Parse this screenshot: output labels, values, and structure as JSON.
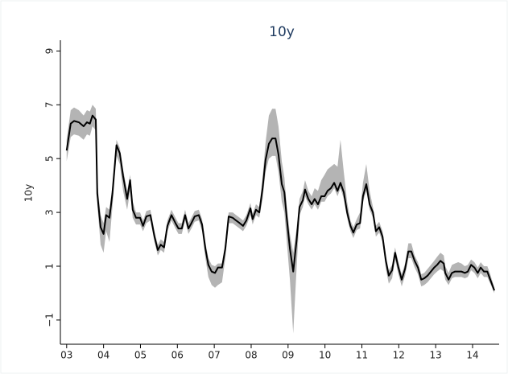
{
  "chart_data": {
    "type": "line-band",
    "title": "10y",
    "y_label": "10y",
    "color": "#000000",
    "band_color": "#b4b4b4",
    "x": [
      2003.0,
      2003.11,
      2003.2,
      2003.33,
      2003.46,
      2003.55,
      2003.63,
      2003.7,
      2003.79,
      2003.83,
      2003.92,
      2004.0,
      2004.07,
      2004.16,
      2004.24,
      2004.35,
      2004.44,
      2004.53,
      2004.64,
      2004.72,
      2004.79,
      2004.88,
      2004.99,
      2005.07,
      2005.16,
      2005.27,
      2005.38,
      2005.47,
      2005.55,
      2005.64,
      2005.73,
      2005.84,
      2005.95,
      2006.03,
      2006.12,
      2006.21,
      2006.3,
      2006.38,
      2006.47,
      2006.58,
      2006.67,
      2006.76,
      2006.84,
      2006.93,
      2007.02,
      2007.1,
      2007.21,
      2007.3,
      2007.39,
      2007.5,
      2007.59,
      2007.69,
      2007.78,
      2007.87,
      2007.98,
      2008.04,
      2008.13,
      2008.22,
      2008.31,
      2008.39,
      2008.48,
      2008.57,
      2008.66,
      2008.74,
      2008.83,
      2008.9,
      2008.96,
      2009.05,
      2009.14,
      2009.23,
      2009.31,
      2009.4,
      2009.46,
      2009.55,
      2009.64,
      2009.72,
      2009.81,
      2009.9,
      2009.99,
      2010.07,
      2010.16,
      2010.25,
      2010.34,
      2010.42,
      2010.51,
      2010.6,
      2010.69,
      2010.77,
      2010.86,
      2010.95,
      2011.03,
      2011.12,
      2011.21,
      2011.3,
      2011.38,
      2011.47,
      2011.56,
      2011.65,
      2011.73,
      2011.82,
      2011.9,
      2011.99,
      2012.08,
      2012.17,
      2012.26,
      2012.34,
      2012.43,
      2012.52,
      2012.61,
      2012.69,
      2012.78,
      2012.87,
      2012.96,
      2013.04,
      2013.13,
      2013.22,
      2013.26,
      2013.35,
      2013.44,
      2013.52,
      2013.61,
      2013.7,
      2013.79,
      2013.87,
      2013.96,
      2014.05,
      2014.14,
      2014.22,
      2014.31,
      2014.4,
      2014.48,
      2014.59
    ],
    "values": [
      5.3,
      6.3,
      6.4,
      6.35,
      6.2,
      6.35,
      6.3,
      6.6,
      6.45,
      3.7,
      2.45,
      2.2,
      2.9,
      2.8,
      3.7,
      5.5,
      5.2,
      4.35,
      3.5,
      4.2,
      3.1,
      2.8,
      2.8,
      2.5,
      2.85,
      2.9,
      2.1,
      1.6,
      1.8,
      1.7,
      2.5,
      2.9,
      2.6,
      2.4,
      2.4,
      2.9,
      2.4,
      2.6,
      2.85,
      2.9,
      2.55,
      1.65,
      1.05,
      0.8,
      0.75,
      0.95,
      0.95,
      1.65,
      2.85,
      2.8,
      2.7,
      2.6,
      2.5,
      2.7,
      3.15,
      2.75,
      3.1,
      3.0,
      3.9,
      4.95,
      5.55,
      5.75,
      5.75,
      5.15,
      4.05,
      3.75,
      2.85,
      1.65,
      0.8,
      1.95,
      3.2,
      3.45,
      3.85,
      3.5,
      3.3,
      3.5,
      3.3,
      3.6,
      3.6,
      3.8,
      3.9,
      4.1,
      3.8,
      4.1,
      3.75,
      3.0,
      2.5,
      2.25,
      2.55,
      2.6,
      3.6,
      4.05,
      3.3,
      3.0,
      2.3,
      2.45,
      2.1,
      1.2,
      0.65,
      0.85,
      1.5,
      0.95,
      0.5,
      0.9,
      1.55,
      1.55,
      1.2,
      0.95,
      0.5,
      0.55,
      0.65,
      0.8,
      0.95,
      1.05,
      1.2,
      1.1,
      0.75,
      0.5,
      0.75,
      0.8,
      0.8,
      0.8,
      0.75,
      0.8,
      1.05,
      0.95,
      0.75,
      0.95,
      0.8,
      0.8,
      0.5,
      0.1
    ],
    "lower": [
      4.9,
      5.8,
      5.9,
      5.85,
      5.7,
      5.9,
      5.85,
      6.2,
      6.05,
      3.3,
      1.8,
      1.5,
      2.3,
      1.9,
      3.2,
      5.1,
      4.8,
      3.8,
      3.1,
      3.8,
      2.8,
      2.55,
      2.55,
      2.3,
      2.6,
      2.7,
      1.9,
      1.4,
      1.6,
      1.5,
      2.3,
      2.7,
      2.4,
      2.2,
      2.2,
      2.7,
      2.2,
      2.4,
      2.65,
      2.7,
      2.3,
      1.3,
      0.6,
      0.3,
      0.2,
      0.3,
      0.4,
      1.3,
      2.6,
      2.6,
      2.5,
      2.4,
      2.3,
      2.5,
      2.9,
      2.55,
      2.9,
      2.8,
      3.5,
      4.5,
      5.0,
      5.1,
      5.1,
      4.5,
      3.4,
      3.0,
      2.0,
      0.5,
      -1.5,
      0.9,
      2.9,
      3.2,
      3.6,
      3.3,
      3.1,
      3.3,
      3.1,
      3.4,
      3.4,
      3.6,
      3.7,
      3.9,
      3.6,
      3.9,
      3.5,
      2.8,
      2.3,
      2.05,
      2.35,
      2.4,
      3.4,
      3.8,
      3.1,
      2.8,
      2.1,
      2.25,
      1.9,
      0.9,
      0.35,
      0.55,
      1.25,
      0.7,
      0.25,
      0.65,
      1.3,
      1.3,
      0.95,
      0.7,
      0.25,
      0.3,
      0.4,
      0.55,
      0.7,
      0.8,
      0.9,
      0.8,
      0.5,
      0.3,
      0.55,
      0.6,
      0.6,
      0.6,
      0.55,
      0.6,
      0.85,
      0.75,
      0.55,
      0.75,
      0.6,
      0.6,
      0.35,
      0.0
    ],
    "upper": [
      5.7,
      6.8,
      6.9,
      6.8,
      6.6,
      6.8,
      6.75,
      7.0,
      6.85,
      4.1,
      2.9,
      2.6,
      3.2,
      3.1,
      4.0,
      5.7,
      5.4,
      4.6,
      3.8,
      4.4,
      3.4,
      3.0,
      3.0,
      2.7,
      3.05,
      3.1,
      2.3,
      1.8,
      2.0,
      1.9,
      2.7,
      3.1,
      2.8,
      2.6,
      2.6,
      3.1,
      2.6,
      2.8,
      3.05,
      3.1,
      2.75,
      1.9,
      1.3,
      1.05,
      1.0,
      1.1,
      1.1,
      1.9,
      3.0,
      3.0,
      2.9,
      2.8,
      2.7,
      2.9,
      3.35,
      2.95,
      3.3,
      3.2,
      4.3,
      5.6,
      6.6,
      6.85,
      6.85,
      6.2,
      4.9,
      4.3,
      3.3,
      2.2,
      1.5,
      2.4,
      3.5,
      3.8,
      4.2,
      3.8,
      3.6,
      3.9,
      3.8,
      4.2,
      4.4,
      4.6,
      4.7,
      4.8,
      4.7,
      5.7,
      4.5,
      3.4,
      2.7,
      2.45,
      2.75,
      3.0,
      4.1,
      4.8,
      3.8,
      3.2,
      2.5,
      2.65,
      2.3,
      1.4,
      0.85,
      1.05,
      1.7,
      1.15,
      0.7,
      1.1,
      1.85,
      1.85,
      1.4,
      1.15,
      0.7,
      0.75,
      0.9,
      1.05,
      1.2,
      1.35,
      1.5,
      1.4,
      1.0,
      0.75,
      1.05,
      1.1,
      1.15,
      1.1,
      1.0,
      1.05,
      1.25,
      1.15,
      0.95,
      1.15,
      1.0,
      1.0,
      0.7,
      0.2
    ],
    "xlim": [
      2002.83,
      2014.72
    ],
    "xticks": [
      {
        "value": 2003,
        "label": "03"
      },
      {
        "value": 2004,
        "label": "04"
      },
      {
        "value": 2005,
        "label": "05"
      },
      {
        "value": 2006,
        "label": "06"
      },
      {
        "value": 2007,
        "label": "07"
      },
      {
        "value": 2008,
        "label": "08"
      },
      {
        "value": 2009,
        "label": "09"
      },
      {
        "value": 2010,
        "label": "10"
      },
      {
        "value": 2011,
        "label": "11"
      },
      {
        "value": 2012,
        "label": "12"
      },
      {
        "value": 2013,
        "label": "13"
      },
      {
        "value": 2014,
        "label": "14"
      }
    ],
    "ylim": [
      -1.9,
      9.4
    ],
    "yticks": [
      {
        "value": -1,
        "label": "−1"
      },
      1,
      3,
      5,
      7,
      9
    ],
    "grid": false
  }
}
